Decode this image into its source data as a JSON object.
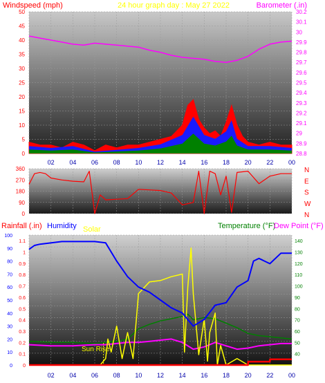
{
  "header": {
    "left_label": "Windspeed (mph)",
    "center_label": "24 hour graph day : May 27 2022",
    "right_label": "Barometer (.in)"
  },
  "colors": {
    "wind_label": "#ff0000",
    "center_label": "#ffff00",
    "baro": "#ff00ff",
    "rain": "#ff0000",
    "humidity": "#0000ff",
    "solar": "#ffff00",
    "temperature": "#008000",
    "dewpoint": "#ff00ff",
    "sunrise": "#ffff00"
  },
  "chart_data": [
    {
      "type": "line",
      "panel": "wind_baro",
      "x_ticks": [
        "02",
        "04",
        "06",
        "08",
        "10",
        "12",
        "14",
        "16",
        "18",
        "20",
        "22",
        "00"
      ],
      "y_left_ticks": [
        "0",
        "5",
        "10",
        "15",
        "20",
        "25",
        "30",
        "35",
        "40",
        "45",
        "50"
      ],
      "y_left_range": [
        0,
        50
      ],
      "y_right_ticks": [
        "28.8",
        "28.9",
        "29",
        "29.1",
        "29.2",
        "29.3",
        "29.4",
        "29.5",
        "29.6",
        "29.7",
        "29.8",
        "29.9",
        "30",
        "30.1",
        "30.2"
      ],
      "y_right_range": [
        28.8,
        30.2
      ],
      "series": [
        {
          "name": "Barometer",
          "axis": "right",
          "x": [
            0,
            1,
            2,
            3,
            4,
            5,
            6,
            7,
            8,
            9,
            10,
            11,
            12,
            13,
            14,
            15,
            16,
            17,
            18,
            19,
            20,
            21,
            22,
            23,
            24
          ],
          "values": [
            29.96,
            29.94,
            29.92,
            29.9,
            29.88,
            29.87,
            29.89,
            29.88,
            29.87,
            29.86,
            29.85,
            29.82,
            29.8,
            29.77,
            29.75,
            29.74,
            29.73,
            29.71,
            29.7,
            29.72,
            29.76,
            29.83,
            29.88,
            29.9,
            29.91
          ]
        },
        {
          "name": "Windspeed gust",
          "axis": "left",
          "x": [
            0,
            1,
            2,
            3,
            4,
            5,
            6,
            7,
            8,
            9,
            10,
            11,
            12,
            13,
            14,
            14.5,
            15,
            15.5,
            16,
            16.5,
            17,
            17.5,
            18,
            18.5,
            19,
            19.5,
            20,
            21,
            22,
            23,
            24
          ],
          "values": [
            4,
            3,
            3,
            2,
            4,
            3,
            1,
            3,
            2,
            3,
            3,
            4,
            5,
            6,
            10,
            17,
            19,
            12,
            9,
            7,
            8,
            6,
            11,
            17,
            10,
            6,
            4,
            3,
            4,
            3,
            3
          ]
        },
        {
          "name": "Windspeed average",
          "axis": "left",
          "x": [
            0,
            2,
            4,
            6,
            8,
            10,
            12,
            14,
            15,
            16,
            17,
            18,
            18.5,
            19,
            20,
            22,
            24
          ],
          "values": [
            2,
            1.5,
            2,
            0.5,
            1,
            1.5,
            2.5,
            5,
            10,
            5,
            4,
            6,
            9,
            4,
            2,
            2,
            1.5
          ]
        }
      ]
    },
    {
      "type": "line",
      "panel": "direction",
      "x_ticks": [
        "02",
        "04",
        "06",
        "08",
        "10",
        "12",
        "14",
        "16",
        "18",
        "20",
        "22",
        "00"
      ],
      "y_left_ticks": [
        "0",
        "90",
        "180",
        "270",
        "360"
      ],
      "y_left_range": [
        0,
        360
      ],
      "y_right_ticks": [
        "N",
        "W",
        "S",
        "E",
        "N"
      ],
      "series": [
        {
          "name": "Wind direction",
          "x": [
            0,
            0.5,
            1,
            1.5,
            2,
            3,
            4,
            5,
            5.5,
            6,
            6.5,
            7,
            8,
            9,
            10,
            11,
            12,
            13,
            14,
            15,
            15.5,
            16,
            16.5,
            17,
            17.5,
            18,
            18.5,
            19,
            20,
            21,
            22,
            23,
            24
          ],
          "values": [
            235,
            320,
            330,
            320,
            285,
            270,
            260,
            255,
            340,
            0,
            150,
            110,
            115,
            120,
            195,
            190,
            185,
            165,
            70,
            90,
            340,
            0,
            340,
            320,
            150,
            300,
            10,
            330,
            340,
            240,
            300,
            320,
            320
          ]
        }
      ]
    },
    {
      "type": "line",
      "panel": "rain_humidity_temp",
      "labels": {
        "rainfall": "Rainfall (.in)",
        "humidity": "Humidity",
        "solar": "Solar",
        "temperature": "Temperature (°F)",
        "dewpoint": "Dew Point (°F)",
        "sunrise": "Sun Rise"
      },
      "x_ticks": [
        "02",
        "04",
        "06",
        "08",
        "10",
        "12",
        "14",
        "16",
        "18",
        "20",
        "22",
        "00"
      ],
      "humidity_ticks": [
        "0",
        "10",
        "20",
        "30",
        "40",
        "50",
        "60",
        "70",
        "80",
        "90",
        "100"
      ],
      "humidity_range": [
        0,
        100
      ],
      "rain_ticks": [
        "0",
        "0.1",
        "0.2",
        "0.3",
        "0.4",
        "0.5",
        "0.6",
        "0.7",
        "0.8",
        "0.9",
        "1",
        "1.1"
      ],
      "rain_range": [
        0,
        1.15
      ],
      "temp_ticks": [
        "40",
        "50",
        "60",
        "70",
        "80",
        "90",
        "100",
        "110",
        "120",
        "130",
        "140"
      ],
      "temp_range": [
        30,
        145
      ],
      "sunrise_hour": 6.8,
      "series": [
        {
          "name": "Humidity",
          "axis": "humidity",
          "x": [
            0,
            0.5,
            1,
            3,
            6,
            7,
            8,
            9,
            10,
            11,
            12,
            13,
            14,
            15,
            16,
            17,
            18,
            19,
            20,
            20.5,
            21,
            22,
            23,
            24
          ],
          "values": [
            89,
            92,
            93,
            95,
            95,
            94,
            80,
            68,
            60,
            56,
            50,
            44,
            40,
            30,
            35,
            46,
            48,
            60,
            65,
            80,
            82,
            78,
            86,
            86
          ]
        },
        {
          "name": "Temperature",
          "axis": "temp",
          "x": [
            0,
            2,
            4,
            6,
            7,
            8,
            9,
            10,
            11,
            12,
            13,
            14,
            14.5,
            15,
            16,
            17,
            18,
            19,
            20,
            21,
            22,
            23,
            24
          ],
          "values": [
            51,
            50,
            50,
            49,
            50,
            51,
            53,
            62,
            66,
            69,
            71,
            73,
            75,
            70,
            72,
            71,
            67,
            63,
            58,
            56,
            55,
            54,
            53
          ]
        },
        {
          "name": "Dew Point",
          "axis": "temp",
          "x": [
            0,
            2,
            4,
            6,
            7,
            8,
            9,
            10,
            11,
            12,
            13,
            14,
            15,
            16,
            17,
            18,
            19,
            20,
            21,
            22,
            23,
            24
          ],
          "values": [
            48,
            47,
            47,
            48,
            48,
            49,
            50,
            50,
            51,
            52,
            53,
            50,
            44,
            46,
            50,
            47,
            44,
            45,
            47,
            48,
            49,
            49
          ]
        },
        {
          "name": "Solar",
          "axis": "humidity",
          "x": [
            0,
            6.5,
            7,
            7.2,
            7.5,
            8,
            8.5,
            9,
            9.5,
            10,
            11,
            12,
            13,
            14,
            14.2,
            14.5,
            14.8,
            15,
            15.5,
            16,
            16.3,
            16.5,
            17,
            17.2,
            17.5,
            18,
            19,
            20,
            20.5,
            24
          ],
          "values": [
            0,
            0,
            5,
            20,
            10,
            30,
            5,
            25,
            5,
            55,
            64,
            65,
            68,
            70,
            10,
            60,
            90,
            55,
            8,
            35,
            3,
            25,
            40,
            0,
            15,
            0,
            5,
            0,
            0,
            0
          ]
        },
        {
          "name": "Rainfall",
          "axis": "rain",
          "x": [
            0,
            20,
            20.01,
            22,
            22.01,
            24
          ],
          "values": [
            0,
            0,
            0.03,
            0.03,
            0.05,
            0.05
          ]
        }
      ]
    }
  ]
}
